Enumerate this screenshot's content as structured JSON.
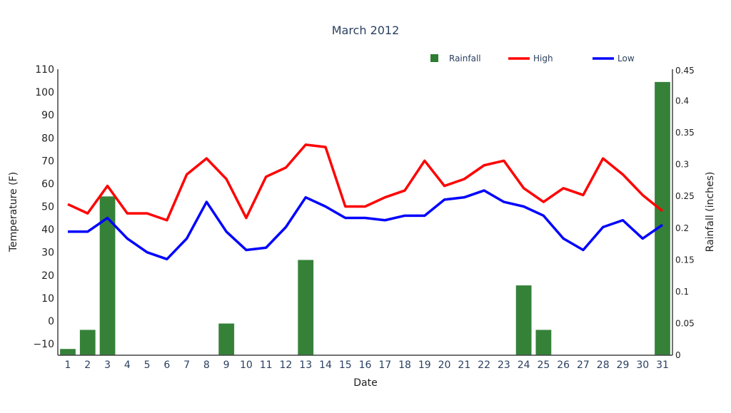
{
  "chart_data": {
    "type": "bar+line",
    "title": "March 2012",
    "xlabel": "Date",
    "ylabel": "Temperature (F)",
    "y2label": "Rainfall (inches)",
    "ylim": [
      -15,
      110
    ],
    "y2lim": [
      0,
      0.45
    ],
    "yticks": [
      -10,
      0,
      10,
      20,
      30,
      40,
      50,
      60,
      70,
      80,
      90,
      100,
      110
    ],
    "y2ticks": [
      0,
      0.05,
      0.1,
      0.15,
      0.2,
      0.25,
      0.3,
      0.35,
      0.4,
      0.45
    ],
    "x": [
      1,
      2,
      3,
      4,
      5,
      6,
      7,
      8,
      9,
      10,
      11,
      12,
      13,
      14,
      15,
      16,
      17,
      18,
      19,
      20,
      21,
      22,
      23,
      24,
      25,
      26,
      27,
      28,
      29,
      30,
      31
    ],
    "legend": "top-right",
    "grid": false,
    "series": [
      {
        "name": "Rainfall",
        "type": "bar",
        "axis": "right",
        "color": "#2e7d32",
        "values": [
          0.01,
          0.04,
          0.25,
          0,
          0,
          0,
          0,
          0,
          0.05,
          0,
          0,
          0,
          0.15,
          0,
          0,
          0,
          0,
          0,
          0,
          0,
          0,
          0,
          0,
          0.11,
          0.04,
          0,
          0,
          0,
          0,
          0,
          0.43
        ]
      },
      {
        "name": "High",
        "type": "line",
        "axis": "left",
        "color": "#ff0000",
        "values": [
          51,
          47,
          59,
          47,
          47,
          44,
          64,
          71,
          62,
          45,
          63,
          67,
          77,
          76,
          50,
          50,
          54,
          57,
          70,
          59,
          62,
          68,
          70,
          58,
          52,
          58,
          55,
          71,
          64,
          55,
          48
        ]
      },
      {
        "name": "Low",
        "type": "line",
        "axis": "left",
        "color": "#0000ff",
        "values": [
          39,
          39,
          45,
          36,
          30,
          27,
          36,
          52,
          39,
          31,
          32,
          41,
          54,
          50,
          45,
          45,
          44,
          46,
          46,
          53,
          54,
          57,
          52,
          50,
          46,
          36,
          31,
          41,
          44,
          36,
          42
        ]
      }
    ]
  }
}
